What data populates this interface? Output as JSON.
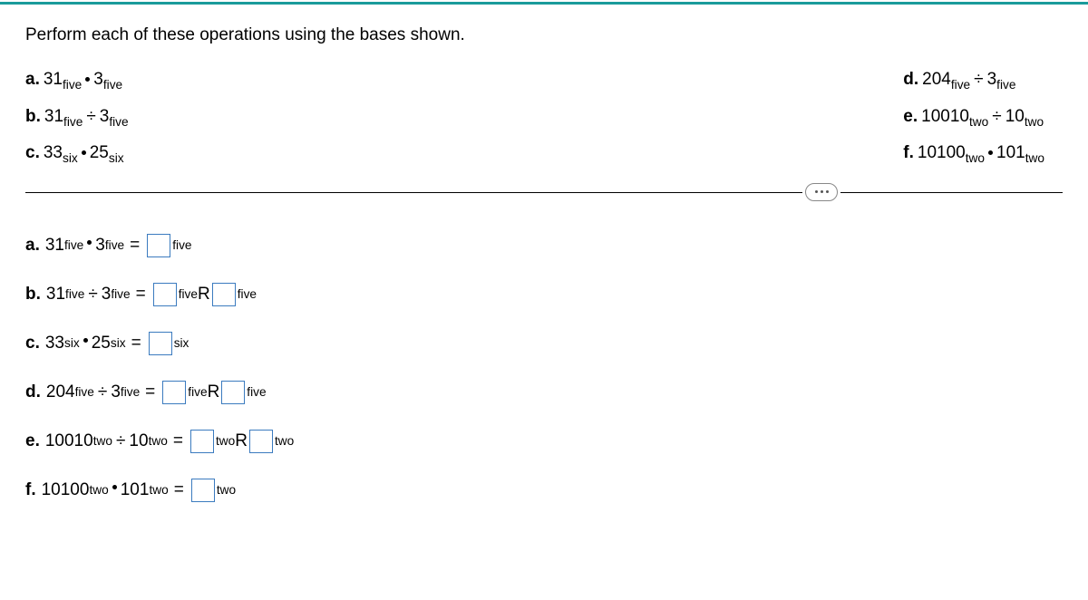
{
  "instruction": "Perform each of these operations using the bases shown.",
  "left_col": {
    "a": {
      "label": "a.",
      "first": "31",
      "first_sub": "five",
      "op": "dot",
      "second": "3",
      "second_sub": "five"
    },
    "b": {
      "label": "b.",
      "first": "31",
      "first_sub": "five",
      "op": "÷",
      "second": "3",
      "second_sub": "five"
    },
    "c": {
      "label": "c.",
      "first": "33",
      "first_sub": "six",
      "op": "dot",
      "second": "25",
      "second_sub": "six"
    }
  },
  "right_col": {
    "d": {
      "label": "d.",
      "first": "204",
      "first_sub": "five",
      "op": "÷",
      "second": "3",
      "second_sub": "five"
    },
    "e": {
      "label": "e.",
      "first": "10010",
      "first_sub": "two",
      "op": "÷",
      "second": "10",
      "second_sub": "two"
    },
    "f": {
      "label": "f.",
      "first": "10100",
      "first_sub": "two",
      "op": "dot",
      "second": "101",
      "second_sub": "two"
    }
  },
  "answers": {
    "a": {
      "label": "a.",
      "first": "31",
      "first_sub": "five",
      "op": "dot",
      "second": "3",
      "second_sub": "five",
      "result_sub": "five",
      "has_remainder": false
    },
    "b": {
      "label": "b.",
      "first": "31",
      "first_sub": "five",
      "op": "÷",
      "second": "3",
      "second_sub": "five",
      "result_sub": "five",
      "has_remainder": true,
      "remainder_label": "R",
      "remainder_sub": "five"
    },
    "c": {
      "label": "c.",
      "first": "33",
      "first_sub": "six",
      "op": "dot",
      "second": "25",
      "second_sub": "six",
      "result_sub": "six",
      "has_remainder": false
    },
    "d": {
      "label": "d.",
      "first": "204",
      "first_sub": "five",
      "op": "÷",
      "second": "3",
      "second_sub": "five",
      "result_sub": "five",
      "has_remainder": true,
      "remainder_label": "R",
      "remainder_sub": "five"
    },
    "e": {
      "label": "e.",
      "first": "10010",
      "first_sub": "two",
      "op": "÷",
      "second": "10",
      "second_sub": "two",
      "result_sub": "two",
      "has_remainder": true,
      "remainder_label": "R",
      "remainder_sub": "two"
    },
    "f": {
      "label": "f.",
      "first": "10100",
      "first_sub": "two",
      "op": "dot",
      "second": "101",
      "second_sub": "two",
      "result_sub": "two",
      "has_remainder": false
    }
  },
  "equals": "="
}
